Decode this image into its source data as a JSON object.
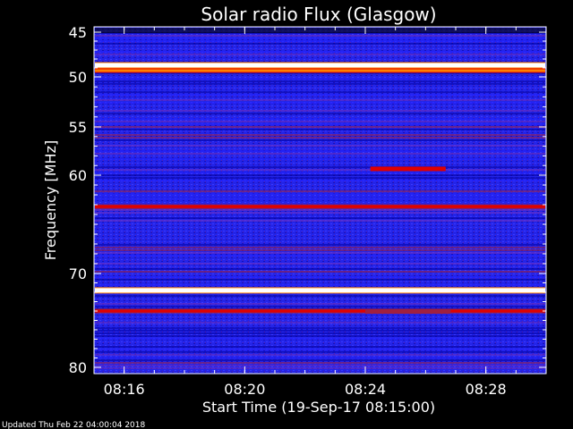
{
  "chart_data": {
    "type": "heatmap",
    "title": "Solar radio Flux (Glasgow)",
    "xlabel": "Start Time (19-Sep-17 08:15:00)",
    "ylabel": "Frequency [MHz]",
    "footer": "Updated Thu Feb 22 04:00:04 2018",
    "x_range_minutes": [
      "08:15:00",
      "08:30:00"
    ],
    "x_ticks": [
      "08:16",
      "08:20",
      "08:24",
      "08:28"
    ],
    "y_ticks": [
      "45",
      "50",
      "55",
      "60",
      "70",
      "80"
    ],
    "y_tick_values": [
      45,
      50,
      55,
      60,
      70,
      80
    ],
    "ylim": [
      44.5,
      80
    ],
    "colormap": [
      "#000000",
      "#0000a0",
      "#2020ff",
      "#7030c0",
      "#a02040",
      "#e00000",
      "#ff8000",
      "#ffff60",
      "#ffffff"
    ],
    "background_color": "#1a1ae0",
    "bright_lines": [
      {
        "freq": 48.7,
        "intensity": "saturated"
      },
      {
        "freq": 49.3,
        "intensity": "high"
      },
      {
        "freq": 63.2,
        "intensity": "medium"
      },
      {
        "freq": 71.8,
        "intensity": "saturated"
      },
      {
        "freq": 74.0,
        "intensity": "medium"
      }
    ],
    "bursts": [
      {
        "start": "08:24:10",
        "end": "08:26:40",
        "freq": 59.3,
        "intensity": "high"
      },
      {
        "start": "08:24:00",
        "end": "08:26:50",
        "freq": 74.0,
        "intensity": "medium"
      }
    ]
  }
}
